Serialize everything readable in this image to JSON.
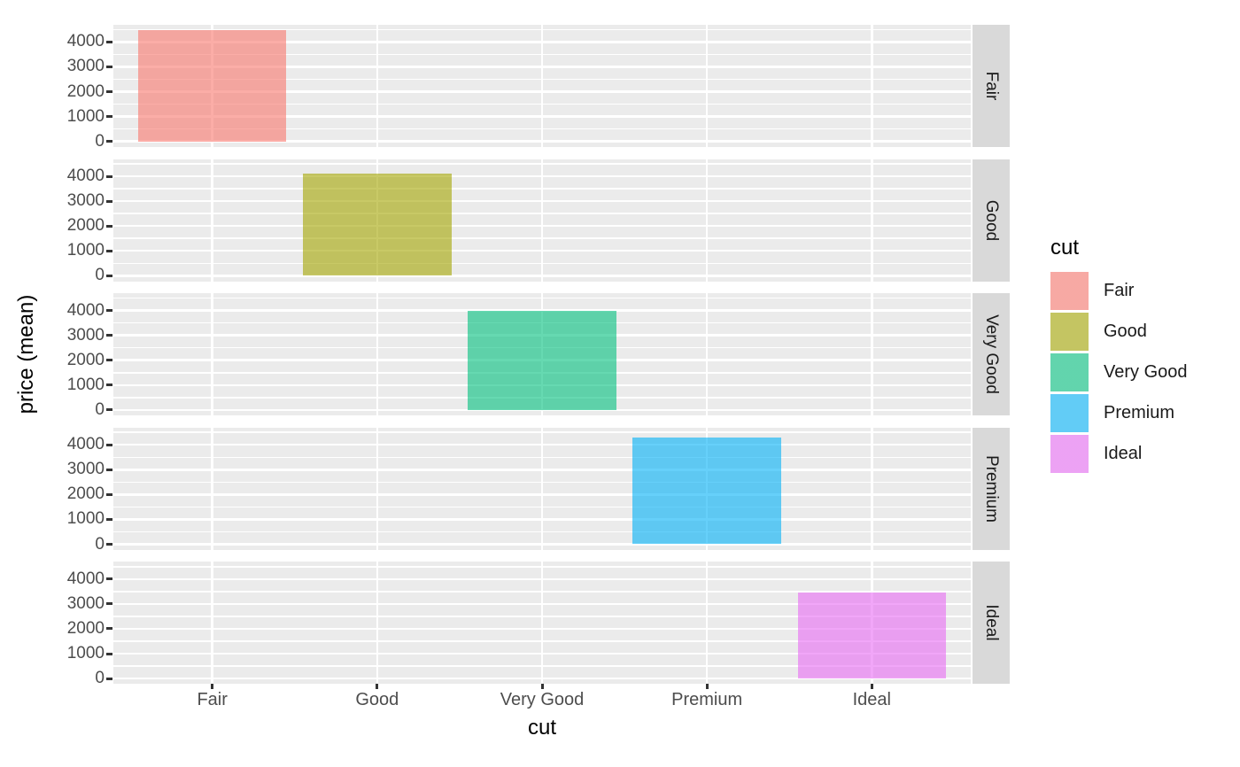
{
  "chart_data": {
    "type": "bar",
    "title": "",
    "categories": [
      "Fair",
      "Good",
      "Very Good",
      "Premium",
      "Ideal"
    ],
    "values": [
      4480,
      4100,
      3980,
      4280,
      3460
    ],
    "xlabel": "cut",
    "ylabel": "price (mean)",
    "y_ticks": [
      0,
      1000,
      2000,
      3000,
      4000
    ],
    "y_minor_ticks": [
      500,
      1500,
      2500,
      3500,
      4500
    ],
    "ylim": [
      0,
      4700
    ],
    "grid": "on",
    "bar_width_fraction": 0.9,
    "facets": {
      "orientation": "rows",
      "strip_position": "right",
      "labels": [
        "Fair",
        "Good",
        "Very Good",
        "Premium",
        "Ideal"
      ]
    },
    "legend": {
      "title": "cut",
      "position": "right",
      "entries": [
        {
          "label": "Fair",
          "color": "#F8766D"
        },
        {
          "label": "Good",
          "color": "#A3A500"
        },
        {
          "label": "Very Good",
          "color": "#00BF7D"
        },
        {
          "label": "Premium",
          "color": "#00B0F6"
        },
        {
          "label": "Ideal",
          "color": "#E76BF3"
        }
      ]
    },
    "style": {
      "bar_alpha": 0.6,
      "panel_bg": "#EBEBEB",
      "strip_bg": "#D9D9D9",
      "grid_color": "#FFFFFF",
      "tick_text_color": "#4D4D4D",
      "axis_title_color": "#000000",
      "strip_text_color": "#1A1A1A",
      "tick_mark_color": "#333333",
      "background": "#FFFFFF"
    }
  }
}
